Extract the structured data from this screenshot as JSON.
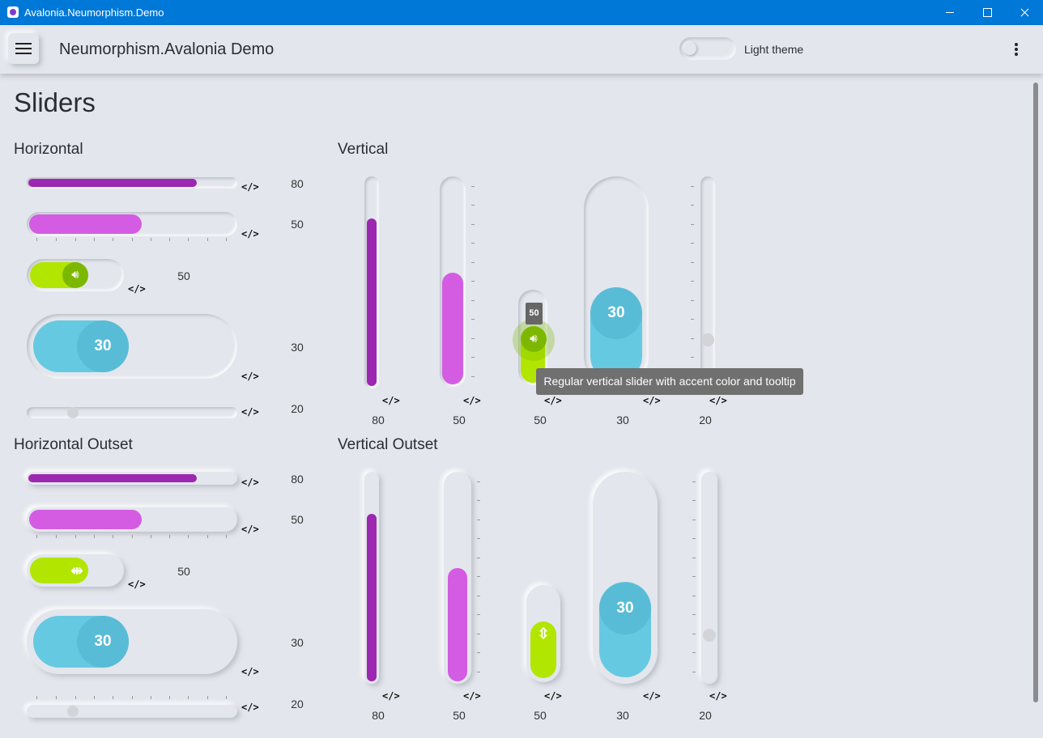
{
  "window": {
    "title": "Avalonia.Neumorphism.Demo"
  },
  "appbar": {
    "title": "Neumorphism.Avalonia Demo",
    "theme_toggle_label": "Light theme"
  },
  "page": {
    "title": "Sliders"
  },
  "sections": {
    "horizontal": "Horizontal",
    "vertical": "Vertical",
    "horizontal_outset": "Horizontal Outset",
    "vertical_outset": "Vertical Outset"
  },
  "code_label": "</>",
  "horizontal": {
    "values": [
      "80",
      "50",
      "50",
      "30",
      "20"
    ],
    "bubble": "30"
  },
  "vertical": {
    "values": [
      "80",
      "50",
      "50",
      "30",
      "20"
    ],
    "bubble": "30",
    "mini_tooltip": "50",
    "tooltip": "Regular vertical slider with accent color and tooltip"
  },
  "horizontal_outset": {
    "values": [
      "80",
      "50",
      "50",
      "30",
      "20"
    ],
    "bubble": "30"
  },
  "vertical_outset": {
    "values": [
      "80",
      "50",
      "50",
      "30",
      "20"
    ],
    "bubble": "30"
  },
  "colors": {
    "purple": "#9c27b0",
    "magenta": "#d35ce2",
    "lime": "#b2e600",
    "cyan": "#66c9e2",
    "accent_bar": "#0078d7"
  },
  "slider_levels": {
    "purple": 0.8,
    "magenta": 0.5,
    "lime": 0.5,
    "cyan": 0.3,
    "grey": 0.2
  }
}
